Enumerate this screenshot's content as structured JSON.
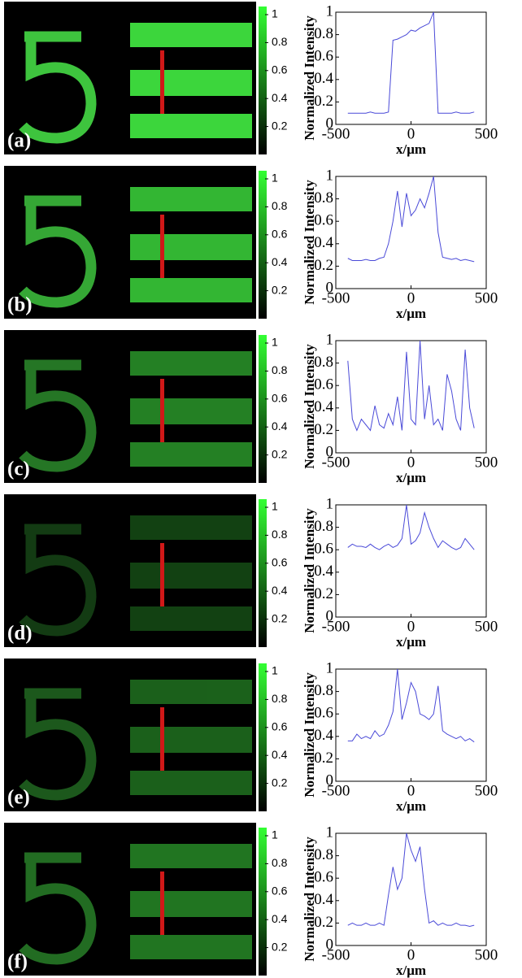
{
  "chart_data": [
    {
      "type": "line",
      "panel_label": "(a)",
      "colorbar_ticks": [
        0.2,
        0.4,
        0.6,
        0.8,
        1
      ],
      "xlabel": "x/μm",
      "ylabel": "Normalized Intensity",
      "xlim": [
        -500,
        500
      ],
      "xticks": [
        -500,
        0,
        500
      ],
      "ylim": [
        0,
        1
      ],
      "yticks": [
        0,
        0.2,
        0.4,
        0.6,
        0.8,
        1
      ],
      "x": [
        -420,
        -390,
        -360,
        -330,
        -300,
        -270,
        -240,
        -210,
        -180,
        -150,
        -120,
        -90,
        -60,
        -30,
        0,
        30,
        60,
        90,
        120,
        150,
        180,
        210,
        240,
        270,
        300,
        330,
        360,
        390,
        420
      ],
      "series": [
        {
          "color": "#4a4ad8",
          "values": [
            0.1,
            0.1,
            0.1,
            0.1,
            0.1,
            0.11,
            0.1,
            0.1,
            0.1,
            0.11,
            0.75,
            0.76,
            0.78,
            0.8,
            0.84,
            0.83,
            0.86,
            0.88,
            0.9,
            1.0,
            0.1,
            0.1,
            0.1,
            0.1,
            0.11,
            0.1,
            0.1,
            0.1,
            0.11
          ]
        }
      ]
    },
    {
      "type": "line",
      "panel_label": "(b)",
      "colorbar_ticks": [
        0.2,
        0.4,
        0.6,
        0.8,
        1
      ],
      "xlabel": "x/μm",
      "ylabel": "Normalized Intensity",
      "xlim": [
        -500,
        500
      ],
      "xticks": [
        -500,
        0,
        500
      ],
      "ylim": [
        0,
        1
      ],
      "yticks": [
        0,
        0.2,
        0.4,
        0.6,
        0.8,
        1
      ],
      "x": [
        -420,
        -390,
        -360,
        -330,
        -300,
        -270,
        -240,
        -210,
        -180,
        -150,
        -120,
        -90,
        -60,
        -30,
        0,
        30,
        60,
        90,
        120,
        150,
        180,
        210,
        240,
        270,
        300,
        330,
        360,
        390,
        420
      ],
      "series": [
        {
          "color": "#4a4ad8",
          "values": [
            0.27,
            0.25,
            0.25,
            0.25,
            0.26,
            0.25,
            0.25,
            0.27,
            0.28,
            0.4,
            0.6,
            0.87,
            0.55,
            0.85,
            0.65,
            0.7,
            0.8,
            0.72,
            0.85,
            1.0,
            0.5,
            0.28,
            0.27,
            0.26,
            0.27,
            0.25,
            0.26,
            0.25,
            0.24
          ]
        }
      ]
    },
    {
      "type": "line",
      "panel_label": "(c)",
      "colorbar_ticks": [
        0.2,
        0.4,
        0.6,
        0.8,
        1
      ],
      "xlabel": "x/μm",
      "ylabel": "Normalized Intensity",
      "xlim": [
        -500,
        500
      ],
      "xticks": [
        -500,
        0,
        500
      ],
      "ylim": [
        0,
        1
      ],
      "yticks": [
        0,
        0.2,
        0.4,
        0.6,
        0.8,
        1
      ],
      "x": [
        -420,
        -390,
        -360,
        -330,
        -300,
        -270,
        -240,
        -210,
        -180,
        -150,
        -120,
        -90,
        -60,
        -30,
        0,
        30,
        60,
        90,
        120,
        150,
        180,
        210,
        240,
        270,
        300,
        330,
        360,
        390,
        420
      ],
      "series": [
        {
          "color": "#4a4ad8",
          "values": [
            0.82,
            0.3,
            0.2,
            0.3,
            0.25,
            0.2,
            0.42,
            0.25,
            0.22,
            0.35,
            0.25,
            0.5,
            0.2,
            0.9,
            0.3,
            0.25,
            1.0,
            0.3,
            0.6,
            0.25,
            0.3,
            0.2,
            0.7,
            0.55,
            0.3,
            0.2,
            0.92,
            0.4,
            0.22
          ]
        }
      ]
    },
    {
      "type": "line",
      "panel_label": "(d)",
      "colorbar_ticks": [
        0.2,
        0.4,
        0.6,
        0.8,
        1
      ],
      "xlabel": "x/μm",
      "ylabel": "Normalized Intensity",
      "xlim": [
        -500,
        500
      ],
      "xticks": [
        -500,
        0,
        500
      ],
      "ylim": [
        0,
        1
      ],
      "yticks": [
        0,
        0.2,
        0.4,
        0.6,
        0.8,
        1
      ],
      "x": [
        -420,
        -390,
        -360,
        -330,
        -300,
        -270,
        -240,
        -210,
        -180,
        -150,
        -120,
        -90,
        -60,
        -30,
        0,
        30,
        60,
        90,
        120,
        150,
        180,
        210,
        240,
        270,
        300,
        330,
        360,
        390,
        420
      ],
      "series": [
        {
          "color": "#4a4ad8",
          "values": [
            0.62,
            0.65,
            0.63,
            0.63,
            0.62,
            0.65,
            0.62,
            0.6,
            0.63,
            0.65,
            0.62,
            0.64,
            0.7,
            1.0,
            0.65,
            0.68,
            0.75,
            0.93,
            0.8,
            0.7,
            0.62,
            0.68,
            0.65,
            0.62,
            0.6,
            0.62,
            0.7,
            0.65,
            0.6
          ]
        }
      ]
    },
    {
      "type": "line",
      "panel_label": "(e)",
      "colorbar_ticks": [
        0.2,
        0.4,
        0.6,
        0.8,
        1
      ],
      "xlabel": "x/μm",
      "ylabel": "Normalized Intensity",
      "xlim": [
        -500,
        500
      ],
      "xticks": [
        -500,
        0,
        500
      ],
      "ylim": [
        0,
        1
      ],
      "yticks": [
        0,
        0.2,
        0.4,
        0.6,
        0.8,
        1
      ],
      "x": [
        -420,
        -390,
        -360,
        -330,
        -300,
        -270,
        -240,
        -210,
        -180,
        -150,
        -120,
        -90,
        -60,
        -30,
        0,
        30,
        60,
        90,
        120,
        150,
        180,
        210,
        240,
        270,
        300,
        330,
        360,
        390,
        420
      ],
      "series": [
        {
          "color": "#4a4ad8",
          "values": [
            0.36,
            0.36,
            0.42,
            0.38,
            0.4,
            0.38,
            0.45,
            0.4,
            0.42,
            0.5,
            0.62,
            1.0,
            0.55,
            0.7,
            0.88,
            0.8,
            0.6,
            0.58,
            0.55,
            0.6,
            0.85,
            0.45,
            0.42,
            0.4,
            0.38,
            0.4,
            0.36,
            0.38,
            0.35
          ]
        }
      ]
    },
    {
      "type": "line",
      "panel_label": "(f)",
      "colorbar_ticks": [
        0.2,
        0.4,
        0.6,
        0.8,
        1
      ],
      "xlabel": "x/μm",
      "ylabel": "Normalized Intensity",
      "xlim": [
        -500,
        500
      ],
      "xticks": [
        -500,
        0,
        500
      ],
      "ylim": [
        0,
        1
      ],
      "yticks": [
        0,
        0.2,
        0.4,
        0.6,
        0.8,
        1
      ],
      "x": [
        -420,
        -390,
        -360,
        -330,
        -300,
        -270,
        -240,
        -210,
        -180,
        -150,
        -120,
        -90,
        -60,
        -30,
        0,
        30,
        60,
        90,
        120,
        150,
        180,
        210,
        240,
        270,
        300,
        330,
        360,
        390,
        420
      ],
      "series": [
        {
          "color": "#4a4ad8",
          "values": [
            0.18,
            0.2,
            0.18,
            0.18,
            0.2,
            0.18,
            0.18,
            0.2,
            0.18,
            0.45,
            0.7,
            0.5,
            0.6,
            1.0,
            0.85,
            0.75,
            0.88,
            0.5,
            0.2,
            0.22,
            0.18,
            0.2,
            0.18,
            0.18,
            0.2,
            0.18,
            0.18,
            0.17,
            0.18
          ]
        }
      ]
    }
  ]
}
